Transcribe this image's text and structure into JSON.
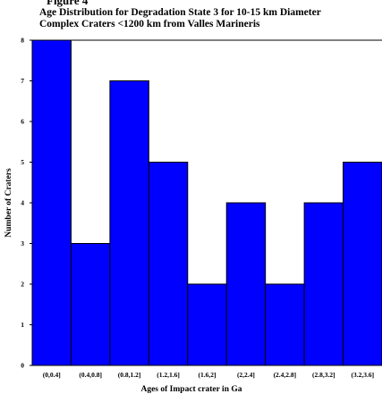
{
  "figure_label": "Figure 4",
  "chart_data": {
    "type": "bar",
    "title_lines": [
      "Age Distribution for Degradation State 3 for 10-15 km Diameter",
      "Complex Craters <1200 km from Valles Marineris"
    ],
    "xlabel": "Ages of Impact crater in Ga",
    "ylabel": "Number of Craters",
    "categories": [
      "(0,0.4]",
      "(0.4,0.8]",
      "(0.8,1.2]",
      "(1.2,1.6]",
      "(1.6,2]",
      "(2,2.4]",
      "(2.4,2.8]",
      "(2.8,3.2]",
      "(3.2,3.6]"
    ],
    "values": [
      8,
      3,
      7,
      5,
      2,
      4,
      2,
      4,
      5
    ],
    "ylim": [
      0,
      8
    ],
    "yticks": [
      "0",
      "1",
      "2",
      "3",
      "4",
      "5",
      "6",
      "7",
      "8"
    ],
    "bar_color": "#0000ff",
    "edge_color": "#000000",
    "grid": false
  }
}
